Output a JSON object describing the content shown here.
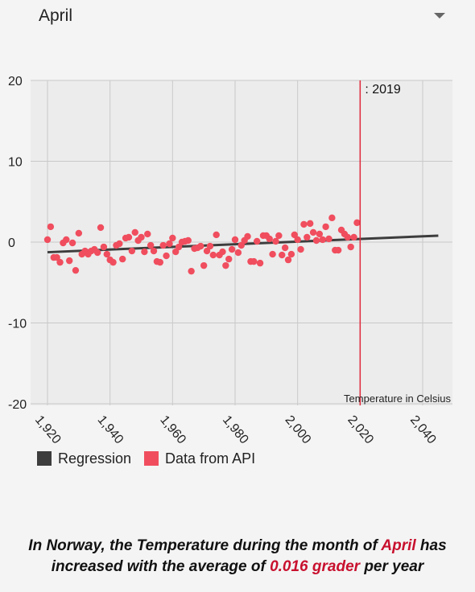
{
  "header": {
    "selected_month": "April"
  },
  "chart_data": {
    "type": "scatter",
    "x_ticks": [
      "1,920",
      "1,940",
      "1,960",
      "1,980",
      "2,000",
      "2,020",
      "2,040"
    ],
    "y_ticks": [
      "20",
      "10",
      "0",
      "-10",
      "-20"
    ],
    "xlim": [
      1920,
      2045
    ],
    "ylim": [
      -20,
      20
    ],
    "grid": true,
    "annotation": ": 2019",
    "marker_year": 2019,
    "unit_label": "Temperature in Celsius",
    "series": [
      {
        "name": "Data from API",
        "color": "#f04e5e",
        "x": [
          1920,
          1921,
          1922,
          1923,
          1924,
          1925,
          1926,
          1927,
          1928,
          1929,
          1930,
          1931,
          1932,
          1933,
          1934,
          1935,
          1936,
          1937,
          1938,
          1939,
          1940,
          1941,
          1942,
          1943,
          1944,
          1945,
          1946,
          1947,
          1948,
          1949,
          1950,
          1951,
          1952,
          1953,
          1954,
          1955,
          1956,
          1957,
          1958,
          1959,
          1960,
          1961,
          1962,
          1963,
          1964,
          1965,
          1966,
          1967,
          1968,
          1969,
          1970,
          1971,
          1972,
          1973,
          1974,
          1975,
          1976,
          1977,
          1978,
          1979,
          1980,
          1981,
          1982,
          1983,
          1984,
          1985,
          1986,
          1987,
          1988,
          1989,
          1990,
          1991,
          1992,
          1993,
          1994,
          1995,
          1996,
          1997,
          1998,
          1999,
          2000,
          2001,
          2002,
          2003,
          2004,
          2005,
          2006,
          2007,
          2008,
          2009,
          2010,
          2011,
          2012,
          2013,
          2014,
          2015,
          2016,
          2017,
          2018,
          2019
        ],
        "y": [
          0.3,
          1.9,
          -1.9,
          -1.9,
          -2.5,
          -0.1,
          0.3,
          -2.3,
          -0.1,
          -3.5,
          1.1,
          -1.5,
          -1.1,
          -1.5,
          -1.1,
          -0.9,
          -1.3,
          1.8,
          -0.6,
          -1.5,
          -2.2,
          -2.5,
          -0.4,
          -0.2,
          -2.1,
          0.5,
          0.6,
          -1.1,
          1.2,
          0.2,
          0.6,
          -1.2,
          1.0,
          -0.4,
          -1.1,
          -2.4,
          -2.5,
          -0.4,
          -1.7,
          -0.2,
          0.5,
          -1.2,
          -0.6,
          0.0,
          0.1,
          0.2,
          -3.6,
          -0.8,
          -0.7,
          -0.5,
          -2.9,
          -1.1,
          -0.5,
          -1.6,
          0.9,
          -1.6,
          -1.2,
          -2.9,
          -2.1,
          -0.9,
          0.3,
          -1.3,
          -0.4,
          0.2,
          0.7,
          -2.4,
          -2.4,
          0.1,
          -2.6,
          0.8,
          0.8,
          0.4,
          -1.5,
          0.1,
          0.8,
          -1.6,
          -0.7,
          -2.2,
          -1.5,
          0.9,
          0.3,
          -0.9,
          2.2,
          0.6,
          2.3,
          1.2,
          0.2,
          1.0,
          0.3,
          1.9,
          0.4,
          3.0,
          -1.0,
          -1.0,
          1.5,
          1.0,
          0.6,
          -0.6,
          0.6,
          2.4
        ]
      },
      {
        "name": "Regression",
        "color": "#3d3d3d",
        "type": "line",
        "x": [
          1920,
          2045
        ],
        "y": [
          -1.25,
          0.8
        ]
      }
    ]
  },
  "legend": {
    "regression_label": "Regression",
    "regression_color": "#3d3d3d",
    "data_label": "Data from API",
    "data_color": "#f04e5e"
  },
  "summary": {
    "prefix": "In Norway, the Temperature during the month of ",
    "month": "April",
    "middle": " has increased with the average of ",
    "rate": "0.016 grader",
    "suffix": " per year"
  }
}
